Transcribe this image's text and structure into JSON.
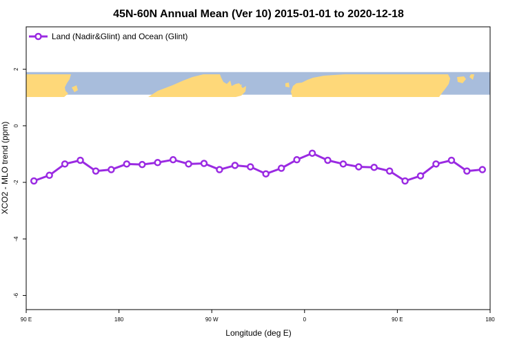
{
  "chart_data": {
    "type": "line",
    "title": "45N-60N Annual Mean (Ver 10)   2015-01-01 to 2020-12-18",
    "xlabel": "Longitude (deg E)",
    "ylabel": "XCO2 - MLO trend (ppm)",
    "x_ticks": [
      {
        "value": 90,
        "label": "90 E"
      },
      {
        "value": 180,
        "label": "180"
      },
      {
        "value": 270,
        "label": "90 W"
      },
      {
        "value": 360,
        "label": "0"
      },
      {
        "value": 450,
        "label": "90 E"
      },
      {
        "value": 540,
        "label": "180"
      }
    ],
    "y_ticks": [
      2,
      0,
      -2,
      -4,
      -6
    ],
    "xlim": [
      90,
      540
    ],
    "ylim": [
      -6.5,
      3.5
    ],
    "legend": {
      "position": "top-left",
      "entries": [
        "Land (Nadir&Glint) and Ocean (Glint)"
      ]
    },
    "map_band": {
      "y_range": [
        1.1,
        1.9
      ],
      "ocean_color": "#a8bddc",
      "land_color": "#fed879"
    },
    "series": [
      {
        "name": "Land (Nadir&Glint) and Ocean (Glint)",
        "color": "#9a2ae2",
        "x": [
          97.5,
          112.5,
          127.5,
          142.5,
          157.5,
          172.5,
          187.5,
          202.5,
          217.5,
          232.5,
          247.5,
          262.5,
          277.5,
          292.5,
          307.5,
          322.5,
          337.5,
          352.5,
          367.5,
          382.5,
          397.5,
          412.5,
          427.5,
          442.5,
          457.5,
          472.5,
          487.5,
          502.5,
          517.5,
          532.5
        ],
        "values": [
          -1.95,
          -1.75,
          -1.35,
          -1.22,
          -1.6,
          -1.55,
          -1.35,
          -1.37,
          -1.3,
          -1.2,
          -1.35,
          -1.33,
          -1.55,
          -1.4,
          -1.45,
          -1.7,
          -1.5,
          -1.2,
          -0.97,
          -1.22,
          -1.35,
          -1.45,
          -1.47,
          -1.6,
          -1.95,
          -1.77,
          -1.35,
          -1.22,
          -1.6,
          -1.55
        ]
      }
    ]
  }
}
